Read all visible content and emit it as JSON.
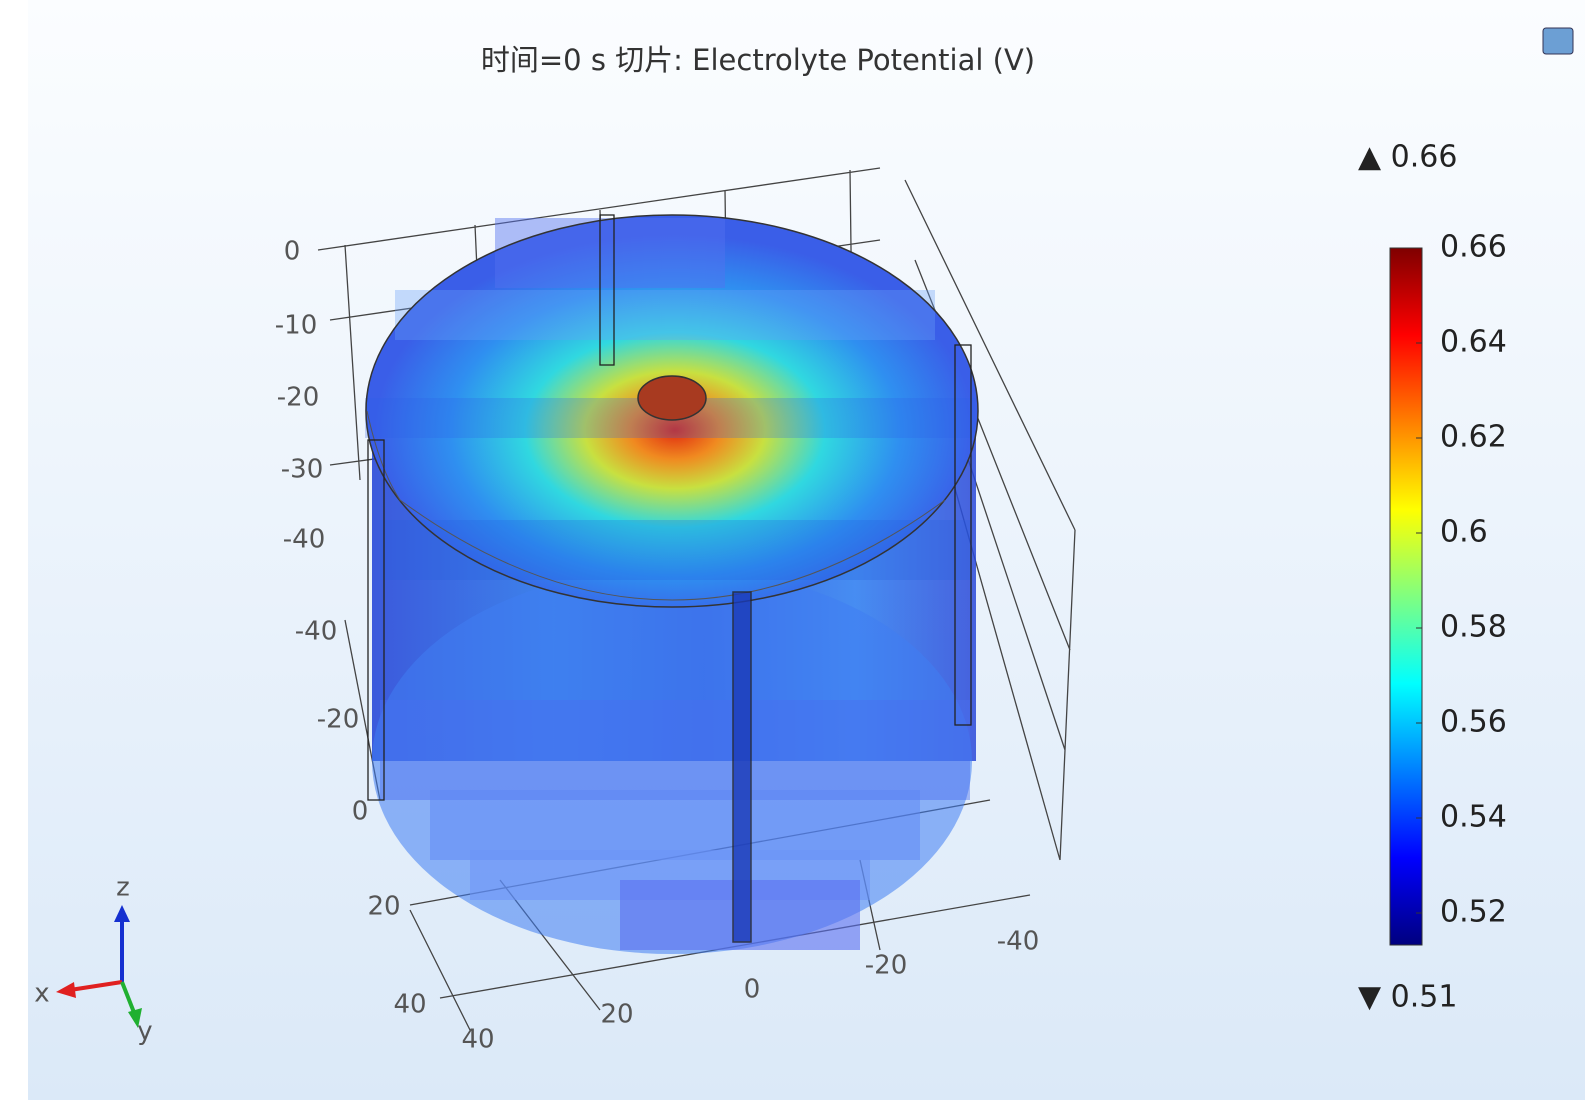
{
  "title": "时间=0 s   切片: Electrolyte Potential (V)",
  "color_legend": {
    "max_label": "▲ 0.66",
    "min_label": "▼ 0.51",
    "ticks": [
      "0.66",
      "0.64",
      "0.62",
      "0.6",
      "0.58",
      "0.56",
      "0.54",
      "0.52"
    ]
  },
  "axis_labels": [
    "0",
    "-10",
    "-20",
    "-30",
    "-40",
    "-40",
    "-20",
    "0",
    "20",
    "40",
    "40",
    "20",
    "0",
    "-20",
    "-40"
  ],
  "triad": {
    "z": "z",
    "x": "x",
    "y": "y"
  }
}
